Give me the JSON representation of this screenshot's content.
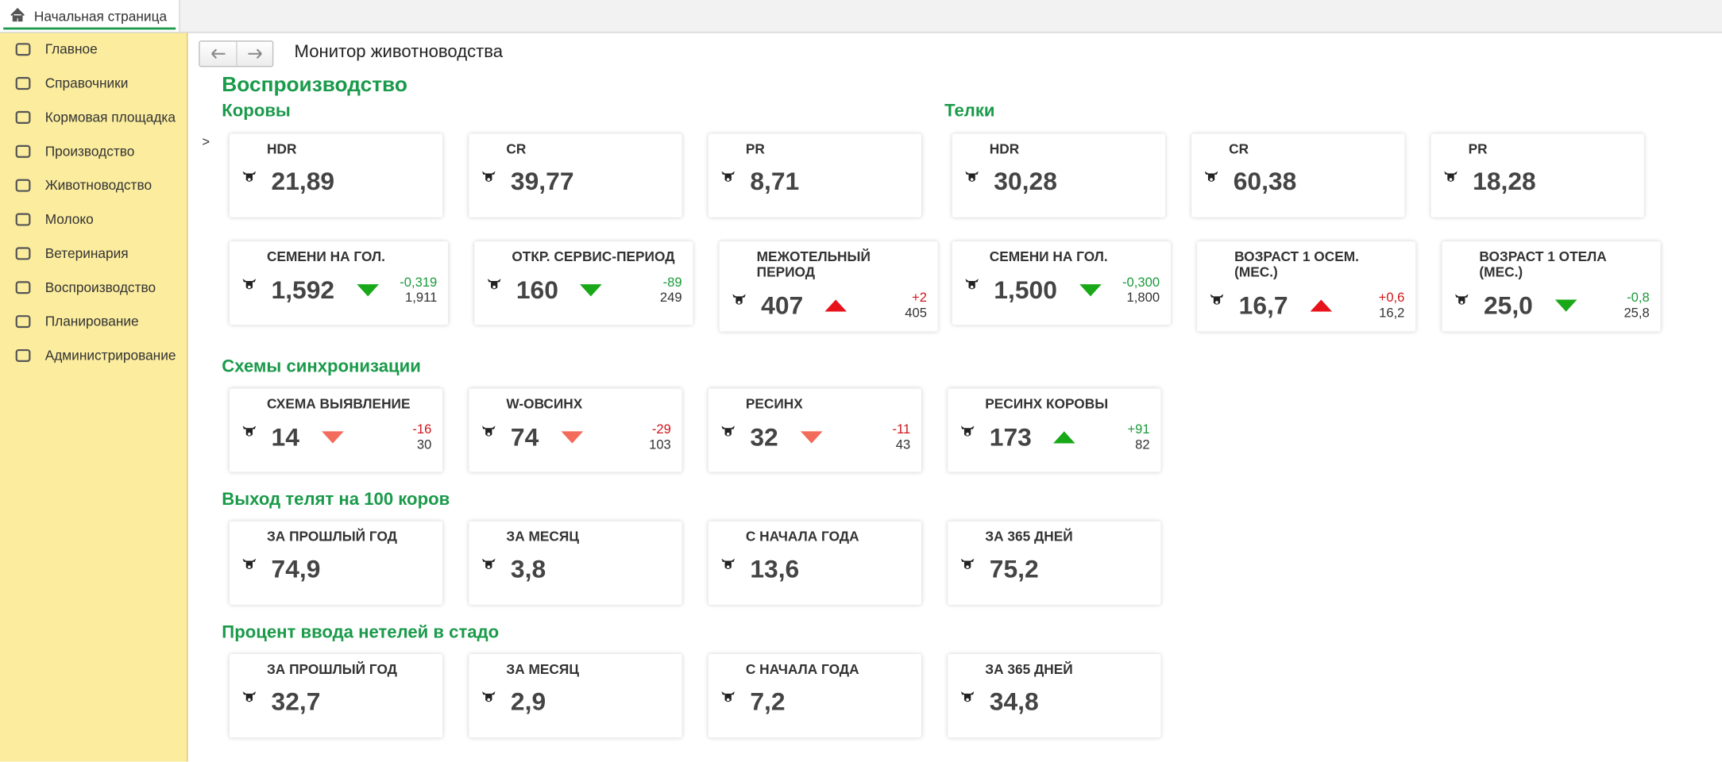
{
  "tab": "Начальная страница",
  "sidebar": [
    "Главное",
    "Справочники",
    "Кормовая площадка",
    "Производство",
    "Животноводство",
    "Молоко",
    "Ветеринария",
    "Воспроизводство",
    "Планирование",
    "Администрирование"
  ],
  "page_title": "Монитор животноводства",
  "heading": "Воспроизводство",
  "marker": ">",
  "columns": [
    {
      "title": "Коровы",
      "cards": [
        {
          "label": "HDR",
          "value": "21,89"
        },
        {
          "label": "CR",
          "value": "39,77"
        },
        {
          "label": "PR",
          "value": "8,71"
        },
        {
          "label": "СЕМЕНИ НА ГОЛ.",
          "value": "1,592",
          "delta": "-0,319",
          "prev": "1,911",
          "trend": "down",
          "delta_color": "#1a9a3a",
          "arrow_color": "#18a818"
        },
        {
          "label": "ОТКР. СЕРВИС-ПЕРИОД",
          "value": "160",
          "delta": "-89",
          "prev": "249",
          "trend": "down",
          "delta_color": "#1a9a3a",
          "arrow_color": "#18a818"
        },
        {
          "label": "МЕЖОТЕЛЬНЫЙ ПЕРИОД",
          "value": "407",
          "delta": "+2",
          "prev": "405",
          "trend": "up",
          "delta_color": "#d0161b",
          "arrow_color": "#e8121a"
        }
      ]
    },
    {
      "title": "Телки",
      "cards": [
        {
          "label": "HDR",
          "value": "30,28"
        },
        {
          "label": "CR",
          "value": "60,38"
        },
        {
          "label": "PR",
          "value": "18,28"
        },
        {
          "label": "СЕМЕНИ НА ГОЛ.",
          "value": "1,500",
          "delta": "-0,300",
          "prev": "1,800",
          "trend": "down",
          "delta_color": "#1a9a3a",
          "arrow_color": "#18a818"
        },
        {
          "label": "ВОЗРАСТ 1 ОСЕМ. (МЕС.)",
          "value": "16,7",
          "delta": "+0,6",
          "prev": "16,2",
          "trend": "up",
          "delta_color": "#d0161b",
          "arrow_color": "#e8121a"
        },
        {
          "label": "ВОЗРАСТ 1 ОТЕЛА (МЕС.)",
          "value": "25,0",
          "delta": "-0,8",
          "prev": "25,8",
          "trend": "down",
          "delta_color": "#1a9a3a",
          "arrow_color": "#18a818"
        }
      ]
    }
  ],
  "sections": [
    {
      "title": "Схемы синхронизации",
      "cards": [
        {
          "label": "СХЕМА ВЫЯВЛЕНИЕ",
          "value": "14",
          "delta": "-16",
          "prev": "30",
          "trend": "down",
          "delta_color": "#d0161b",
          "arrow_color": "#f26b5b"
        },
        {
          "label": "W-ОВСИНХ",
          "value": "74",
          "delta": "-29",
          "prev": "103",
          "trend": "down",
          "delta_color": "#d0161b",
          "arrow_color": "#f26b5b"
        },
        {
          "label": "РЕСИНХ",
          "value": "32",
          "delta": "-11",
          "prev": "43",
          "trend": "down",
          "delta_color": "#d0161b",
          "arrow_color": "#f26b5b"
        },
        {
          "label": "РЕСИНХ КОРОВЫ",
          "value": "173",
          "delta": "+91",
          "prev": "82",
          "trend": "up",
          "delta_color": "#1a9a3a",
          "arrow_color": "#18a818"
        }
      ]
    },
    {
      "title": "Выход телят на 100 коров",
      "cards": [
        {
          "label": "ЗА ПРОШЛЫЙ ГОД",
          "value": "74,9"
        },
        {
          "label": "ЗА МЕСЯЦ",
          "value": "3,8"
        },
        {
          "label": "С НАЧАЛА ГОДА",
          "value": "13,6"
        },
        {
          "label": "ЗА 365 ДНЕЙ",
          "value": "75,2"
        }
      ]
    },
    {
      "title": "Процент ввода нетелей в стадо",
      "cards": [
        {
          "label": "ЗА ПРОШЛЫЙ ГОД",
          "value": "32,7"
        },
        {
          "label": "ЗА МЕСЯЦ",
          "value": "2,9"
        },
        {
          "label": "С НАЧАЛА ГОДА",
          "value": "7,2"
        },
        {
          "label": "ЗА 365 ДНЕЙ",
          "value": "34,8"
        }
      ]
    }
  ]
}
